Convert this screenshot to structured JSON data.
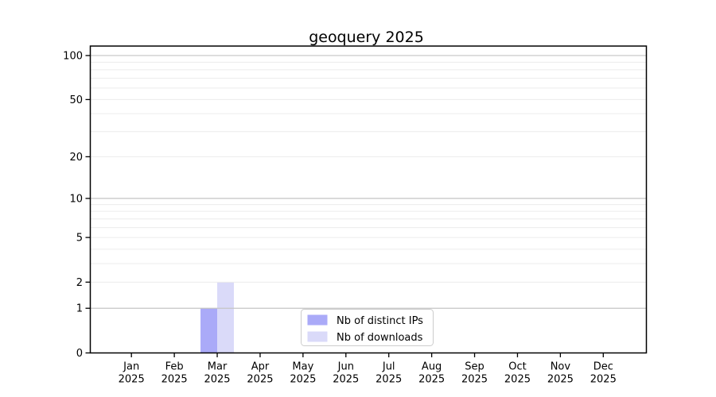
{
  "page": {
    "background": "#ffffff"
  },
  "chart_data": {
    "type": "bar",
    "title": "geoquery 2025",
    "xlabel": "",
    "ylabel": "",
    "yscale": "log1p",
    "ylim": [
      0,
      116
    ],
    "yticks": [
      0,
      1,
      2,
      5,
      10,
      20,
      50,
      100
    ],
    "gridlines": {
      "major": [
        1,
        10,
        100
      ],
      "minor": [
        2,
        3,
        4,
        5,
        6,
        7,
        8,
        9,
        20,
        30,
        40,
        50,
        60,
        70,
        80,
        90
      ]
    },
    "categories": [
      {
        "label": "Jan",
        "sublabel": "2025"
      },
      {
        "label": "Feb",
        "sublabel": "2025"
      },
      {
        "label": "Mar",
        "sublabel": "2025"
      },
      {
        "label": "Apr",
        "sublabel": "2025"
      },
      {
        "label": "May",
        "sublabel": "2025"
      },
      {
        "label": "Jun",
        "sublabel": "2025"
      },
      {
        "label": "Jul",
        "sublabel": "2025"
      },
      {
        "label": "Aug",
        "sublabel": "2025"
      },
      {
        "label": "Sep",
        "sublabel": "2025"
      },
      {
        "label": "Oct",
        "sublabel": "2025"
      },
      {
        "label": "Nov",
        "sublabel": "2025"
      },
      {
        "label": "Dec",
        "sublabel": "2025"
      }
    ],
    "series": [
      {
        "name": "Nb of distinct IPs",
        "color": "#aaaaf8",
        "values": [
          0,
          0,
          1,
          0,
          0,
          0,
          0,
          0,
          0,
          0,
          0,
          0
        ]
      },
      {
        "name": "Nb of downloads",
        "color": "#dadaf9",
        "values": [
          0,
          0,
          2,
          0,
          0,
          0,
          0,
          0,
          0,
          0,
          0,
          0
        ]
      }
    ],
    "legend": {
      "position": "bottom-center",
      "labels": [
        "Nb of distinct IPs",
        "Nb of downloads"
      ]
    },
    "colors": {
      "axis": "#000000",
      "text": "#000000",
      "grid_major": "#c4c4c4",
      "grid_minor": "#ececec",
      "legend_border": "#cccccc",
      "legend_bg": "#ffffff"
    }
  }
}
